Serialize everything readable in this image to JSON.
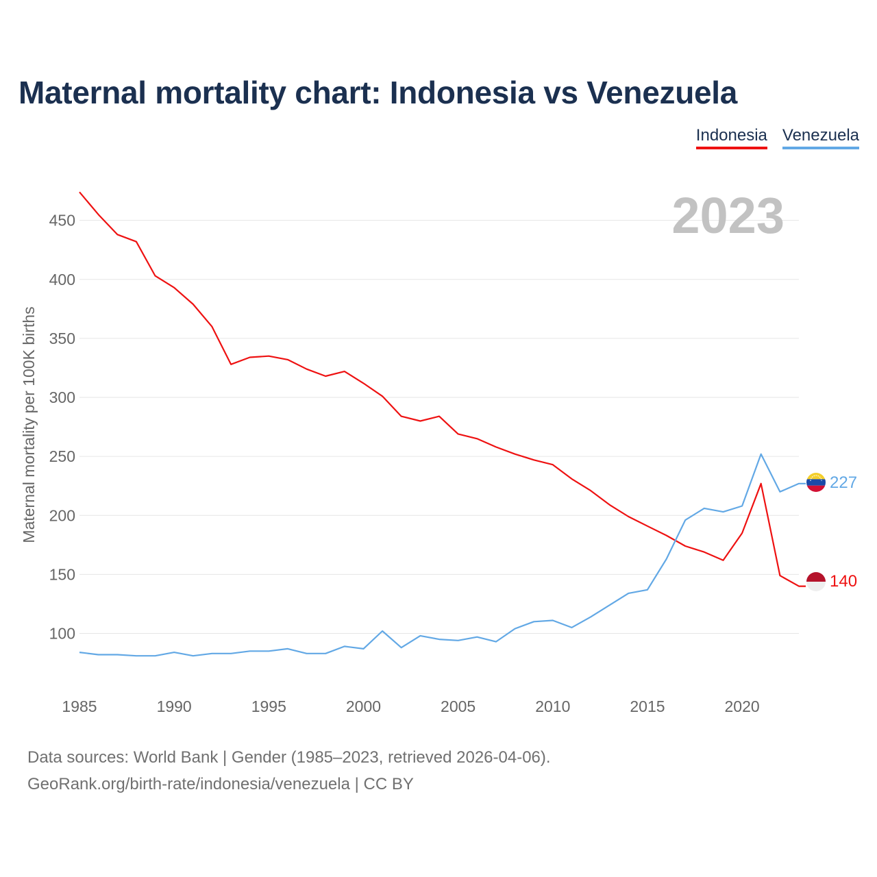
{
  "title": "Maternal mortality chart: Indonesia vs Venezuela",
  "footer": {
    "line1": "Data sources: World Bank | Gender (1985–2023, retrieved 2026-04-06).",
    "line2": "GeoRank.org/birth-rate/indonesia/venezuela | CC BY"
  },
  "chart_data": {
    "type": "line",
    "title": "Maternal mortality chart: Indonesia vs Venezuela",
    "ylabel": "Maternal mortality per 100K births",
    "xlabel": "",
    "year_label": "2023",
    "x": [
      1985,
      1986,
      1987,
      1988,
      1989,
      1990,
      1991,
      1992,
      1993,
      1994,
      1995,
      1996,
      1997,
      1998,
      1999,
      2000,
      2001,
      2002,
      2003,
      2004,
      2005,
      2006,
      2007,
      2008,
      2009,
      2010,
      2011,
      2012,
      2013,
      2014,
      2015,
      2016,
      2017,
      2018,
      2019,
      2020,
      2021,
      2022,
      2023
    ],
    "xlim": [
      1985,
      2023
    ],
    "ylim": [
      55,
      480
    ],
    "x_ticks": [
      1985,
      1990,
      1995,
      2000,
      2005,
      2010,
      2015,
      2020
    ],
    "y_ticks": [
      100,
      150,
      200,
      250,
      300,
      350,
      400,
      450
    ],
    "grid": true,
    "legend_position": "top-right",
    "series": [
      {
        "name": "Indonesia",
        "color": "#ee1111",
        "end_label": "140",
        "flag": "indonesia-flag",
        "values": [
          474,
          455,
          438,
          432,
          403,
          393,
          379,
          360,
          328,
          334,
          335,
          332,
          324,
          318,
          322,
          312,
          301,
          284,
          280,
          284,
          269,
          265,
          258,
          252,
          247,
          243,
          231,
          221,
          209,
          199,
          191,
          183,
          174,
          169,
          162,
          185,
          227,
          149,
          140
        ]
      },
      {
        "name": "Venezuela",
        "color": "#62a8e5",
        "end_label": "227",
        "flag": "venezuela-flag",
        "values": [
          84,
          82,
          82,
          81,
          81,
          84,
          81,
          83,
          83,
          85,
          85,
          87,
          83,
          83,
          89,
          87,
          102,
          88,
          98,
          95,
          94,
          97,
          93,
          104,
          110,
          111,
          105,
          114,
          124,
          134,
          137,
          163,
          196,
          206,
          203,
          208,
          252,
          220,
          227
        ]
      }
    ]
  }
}
